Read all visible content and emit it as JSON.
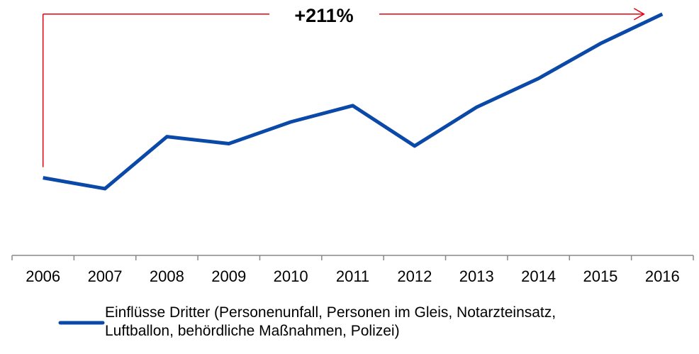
{
  "chart_data": {
    "type": "line",
    "annotation": "+211%",
    "categories": [
      "2006",
      "2007",
      "2008",
      "2009",
      "2010",
      "2011",
      "2012",
      "2013",
      "2014",
      "2015",
      "2016"
    ],
    "series": [
      {
        "name": "Einflüsse Dritter (Personenunfall, Personen im Gleis, Notarzteinsatz, Luftballon, behördliche Maßnahmen, Polizei)",
        "color": "#0a49a8",
        "values": [
          100,
          86,
          153,
          144,
          172,
          193,
          141,
          191,
          228,
          273,
          311
        ]
      }
    ],
    "annotation_color": "#e3000f",
    "ylim": [
      0,
      320
    ]
  }
}
